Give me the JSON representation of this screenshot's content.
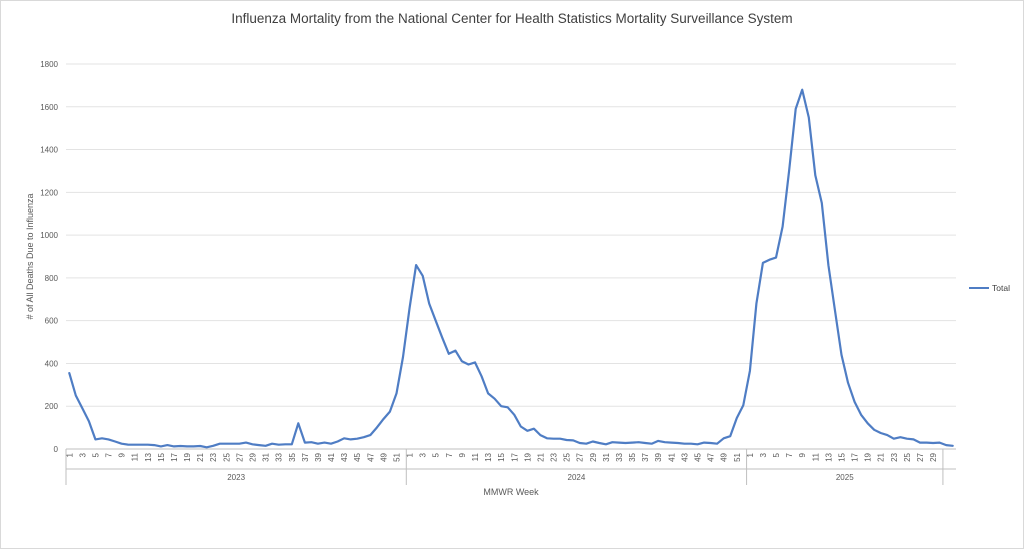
{
  "chart_data": {
    "type": "line",
    "title": "Influenza Mortality from the National Center for Health Statistics Mortality Surveillance System",
    "ylabel": "# of All Deaths Due to Influenza",
    "xlabel": "MMWR Week",
    "ylim": [
      0,
      1800
    ],
    "yticks": [
      0,
      200,
      400,
      600,
      800,
      1000,
      1200,
      1400,
      1600,
      1800
    ],
    "grid": true,
    "legend_position": "right",
    "color": "#4f7dc4",
    "years": [
      {
        "label": "2023",
        "weeks": 52
      },
      {
        "label": "2024",
        "weeks": 52
      },
      {
        "label": "2025",
        "weeks": 30
      }
    ],
    "series": [
      {
        "name": "Total",
        "values": [
          355,
          250,
          190,
          130,
          45,
          50,
          45,
          35,
          25,
          20,
          20,
          20,
          20,
          18,
          12,
          18,
          12,
          14,
          12,
          12,
          14,
          8,
          15,
          25,
          25,
          25,
          25,
          30,
          22,
          18,
          15,
          25,
          20,
          22,
          22,
          120,
          30,
          32,
          25,
          30,
          25,
          35,
          50,
          45,
          48,
          55,
          65,
          100,
          140,
          175,
          260,
          430,
          660,
          860,
          810,
          680,
          600,
          520,
          445,
          460,
          410,
          395,
          405,
          340,
          260,
          235,
          200,
          195,
          160,
          105,
          85,
          95,
          65,
          50,
          48,
          48,
          42,
          40,
          28,
          25,
          35,
          28,
          22,
          32,
          30,
          28,
          30,
          32,
          28,
          25,
          38,
          32,
          30,
          28,
          25,
          25,
          22,
          30,
          28,
          25,
          50,
          60,
          145,
          205,
          365,
          680,
          870,
          885,
          895,
          1040,
          1300,
          1590,
          1680,
          1550,
          1280,
          1150,
          860,
          650,
          440,
          310,
          220,
          160,
          120,
          90,
          75,
          65,
          48,
          55,
          48,
          45,
          30,
          30,
          28,
          30,
          18,
          15
        ]
      }
    ]
  }
}
